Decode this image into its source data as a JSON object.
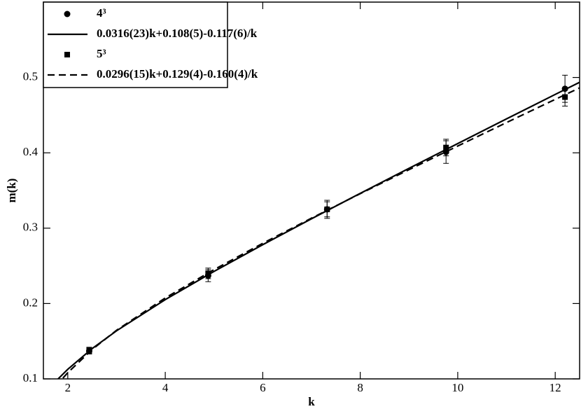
{
  "chart_data": {
    "type": "line",
    "x_label": "k",
    "y_label": "m(k)",
    "xlim": [
      1.5,
      12.5
    ],
    "xticks": [
      2,
      4,
      6,
      8,
      10,
      12
    ],
    "ylim": [
      0.1,
      0.6
    ],
    "yticks": [
      0.1,
      0.2,
      0.3,
      0.4,
      0.5
    ],
    "legend": "upper left",
    "series": [
      {
        "name": "4³",
        "style": "points",
        "marker": "circle",
        "color": "#000000",
        "x": [
          2.44,
          4.88,
          7.32,
          9.76,
          12.2
        ],
        "values": [
          0.137,
          0.237,
          0.325,
          0.401,
          0.485
        ],
        "errors": [
          0.004,
          0.008,
          0.01,
          0.015,
          0.018
        ]
      },
      {
        "name": "0.0316(23)k+0.108(5)-0.117(6)/k",
        "style": "solid",
        "color": "#000000",
        "x": [
          1.8,
          2,
          2.5,
          3,
          4,
          5,
          6,
          7,
          8,
          9,
          10,
          11,
          12,
          12.5
        ],
        "values": [
          0.0999,
          0.1127,
          0.1402,
          0.1638,
          0.2052,
          0.2426,
          0.2781,
          0.3125,
          0.3462,
          0.3794,
          0.4123,
          0.445,
          0.4775,
          0.4936
        ]
      },
      {
        "name": "5³",
        "style": "points",
        "marker": "square",
        "color": "#000000",
        "x": [
          2.44,
          4.88,
          7.32,
          9.76,
          12.2
        ],
        "values": [
          0.138,
          0.24,
          0.325,
          0.407,
          0.474
        ],
        "errors": [
          0.004,
          0.007,
          0.012,
          0.011,
          0.012
        ]
      },
      {
        "name": "0.0296(15)k+0.129(4)-0.160(4)/k",
        "style": "dashed",
        "color": "#000000",
        "x": [
          1.9,
          2,
          2.5,
          3,
          4,
          5,
          6,
          7,
          8,
          9,
          10,
          11,
          12,
          12.5
        ],
        "values": [
          0.101,
          0.1082,
          0.139,
          0.1645,
          0.2074,
          0.245,
          0.2799,
          0.3133,
          0.3458,
          0.3776,
          0.409,
          0.4401,
          0.4709,
          0.4862
        ]
      }
    ]
  }
}
